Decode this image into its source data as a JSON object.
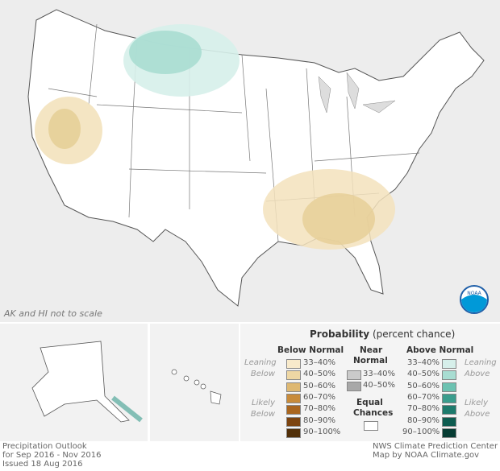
{
  "map": {
    "scale_note": "AK and HI not to scale",
    "logo_text": "NOAA"
  },
  "legend": {
    "title": "Probability",
    "title_sub": "(percent chance)",
    "below": {
      "heading": "Below Normal",
      "leaning": "Leaning Below",
      "likely": "Likely Below",
      "items": [
        {
          "label": "33–40%",
          "color": "#f8eacb"
        },
        {
          "label": "40–50%",
          "color": "#eed7a4"
        },
        {
          "label": "50–60%",
          "color": "#deb872"
        },
        {
          "label": "60–70%",
          "color": "#c88b3a"
        },
        {
          "label": "70–80%",
          "color": "#a9661f"
        },
        {
          "label": "80–90%",
          "color": "#7c4410"
        },
        {
          "label": "90–100%",
          "color": "#523009"
        }
      ]
    },
    "near": {
      "heading_1": "Near",
      "heading_2": "Normal",
      "items": [
        {
          "label": "33–40%",
          "color": "#cacaca"
        },
        {
          "label": "40–50%",
          "color": "#a8a8a8"
        }
      ]
    },
    "equal": {
      "heading_1": "Equal",
      "heading_2": "Chances",
      "color": "#ffffff"
    },
    "above": {
      "heading": "Above Normal",
      "leaning": "Leaning Above",
      "likely": "Likely Above",
      "items": [
        {
          "label": "33–40%",
          "color": "#d6efea"
        },
        {
          "label": "40–50%",
          "color": "#a8ddd2"
        },
        {
          "label": "50–60%",
          "color": "#6cc2b1"
        },
        {
          "label": "60–70%",
          "color": "#3a9d8d"
        },
        {
          "label": "70–80%",
          "color": "#1d7a6c"
        },
        {
          "label": "80–90%",
          "color": "#0e5c50"
        },
        {
          "label": "90–100%",
          "color": "#063c33"
        }
      ]
    }
  },
  "footer": {
    "line1": "Precipitation Outlook",
    "line2": "for Sep 2016 - Nov 2016",
    "line3": "Issued 18 Aug 2016",
    "credit1": "NWS Climate Prediction Center",
    "credit2": "Map by NOAA Climate.gov"
  }
}
